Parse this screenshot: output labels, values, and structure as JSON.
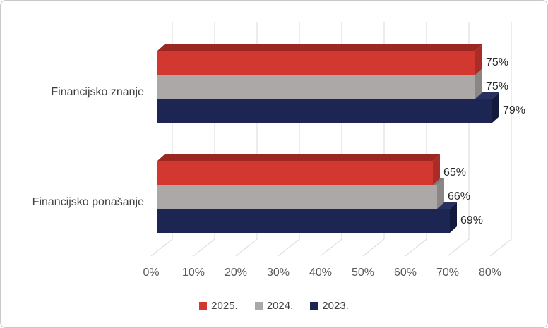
{
  "chart_data": {
    "type": "bar",
    "orientation": "horizontal",
    "effect": "3d",
    "title": "",
    "categories": [
      "Financijsko znanje",
      "Financijsko ponašanje"
    ],
    "series": [
      {
        "name": "2025.",
        "values": [
          75,
          65
        ],
        "color": "#d23730",
        "color_top": "#9b2722",
        "color_side": "#a92c26"
      },
      {
        "name": "2024.",
        "values": [
          75,
          66
        ],
        "color": "#aba8a7",
        "color_top": "#7e7b7a",
        "color_side": "#898684"
      },
      {
        "name": "2023.",
        "values": [
          79,
          69
        ],
        "color": "#1d2553",
        "color_top": "#28305f",
        "color_side": "#141a3c"
      }
    ],
    "data_labels": [
      [
        "75%",
        "75%",
        "79%"
      ],
      [
        "65%",
        "66%",
        "69%"
      ]
    ],
    "value_suffix": "%",
    "x_ticks": [
      "0%",
      "10%",
      "20%",
      "30%",
      "40%",
      "50%",
      "60%",
      "70%",
      "80%"
    ],
    "xlim": [
      0,
      80
    ],
    "grid": true,
    "gridline_color": "#d9d9d9",
    "legend_position": "bottom"
  }
}
